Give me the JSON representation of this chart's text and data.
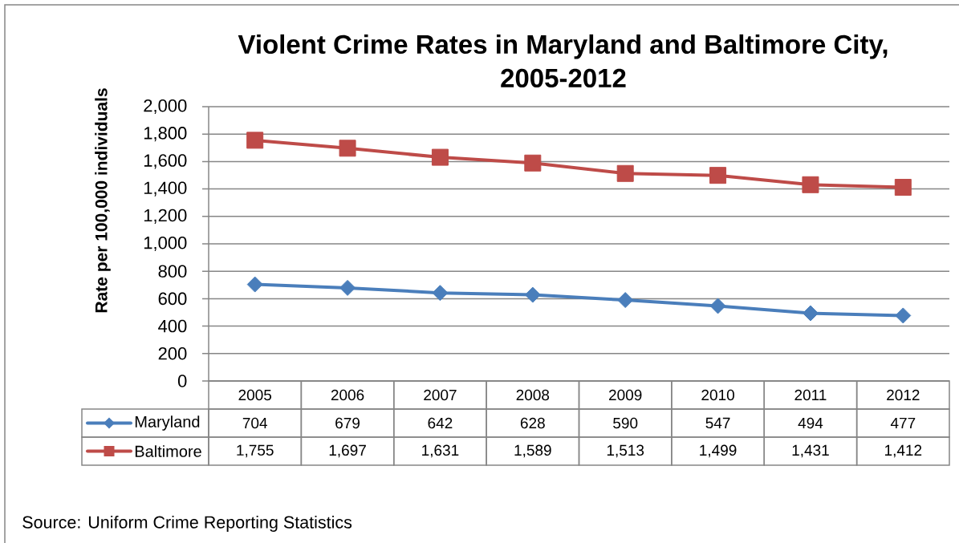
{
  "chart_data": {
    "type": "line",
    "title": "Violent Crime Rates in Maryland and Baltimore City, 2005-2012",
    "ylabel": "Rate per 100,000 individuals",
    "categories": [
      "2005",
      "2006",
      "2007",
      "2008",
      "2009",
      "2010",
      "2011",
      "2012"
    ],
    "series": [
      {
        "name": "Maryland",
        "color": "#4a7ebb",
        "marker": "diamond",
        "values": [
          704,
          679,
          642,
          628,
          590,
          547,
          494,
          477
        ],
        "value_labels": [
          "704",
          "679",
          "642",
          "628",
          "590",
          "547",
          "494",
          "477"
        ]
      },
      {
        "name": "Baltimore",
        "color": "#be4b48",
        "marker": "square",
        "values": [
          1755,
          1697,
          1631,
          1589,
          1513,
          1499,
          1431,
          1412
        ],
        "value_labels": [
          "1,755",
          "1,697",
          "1,631",
          "1,589",
          "1,513",
          "1,499",
          "1,431",
          "1,412"
        ]
      }
    ],
    "ylim": [
      0,
      2000
    ],
    "yticks": [
      0,
      200,
      400,
      600,
      800,
      {
        "value": 1000,
        "label": "1,000"
      },
      {
        "value": 1200,
        "label": "1,200"
      },
      {
        "value": 1400,
        "label": "1,400"
      },
      {
        "value": 1600,
        "label": "1,600"
      },
      {
        "value": 1800,
        "label": "1,800"
      },
      {
        "value": 2000,
        "label": "2,000"
      }
    ],
    "grid": "y",
    "legend": "bottom",
    "line_style": "solid",
    "annotations": [
      "Source: Uniform Crime Reporting Statistics"
    ]
  }
}
